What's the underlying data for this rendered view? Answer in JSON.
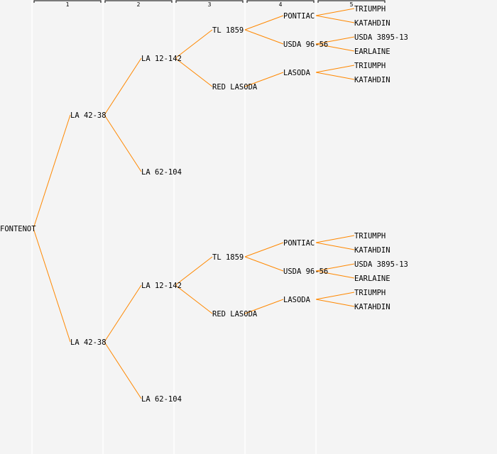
{
  "generation_headers": [
    "1",
    "2",
    "3",
    "4",
    "5"
  ],
  "colors": {
    "line": "#ff8800",
    "separator": "#ffffff",
    "bracket": "#000000",
    "background": "#f4f4f4"
  },
  "pedigree": {
    "name": "FONTENOT",
    "parents": [
      {
        "name": "LA 42-38",
        "parents": [
          {
            "name": "LA 12-142",
            "parents": [
              {
                "name": "TL 1859",
                "parents": [
                  {
                    "name": "PONTIAC",
                    "parents": [
                      {
                        "name": "TRIUMPH"
                      },
                      {
                        "name": "KATAHDIN"
                      }
                    ]
                  },
                  {
                    "name": "USDA 96-56",
                    "parents": [
                      {
                        "name": "USDA 3895-13"
                      },
                      {
                        "name": "EARLAINE"
                      }
                    ]
                  }
                ]
              },
              {
                "name": "RED LASODA",
                "parents": [
                  {
                    "name": "LASODA",
                    "parents": [
                      {
                        "name": "TRIUMPH"
                      },
                      {
                        "name": "KATAHDIN"
                      }
                    ]
                  },
                  null
                ]
              }
            ]
          },
          {
            "name": "LA 62-104"
          }
        ]
      },
      {
        "name": "LA 42-38",
        "parents": [
          {
            "name": "LA 12-142",
            "parents": [
              {
                "name": "TL 1859",
                "parents": [
                  {
                    "name": "PONTIAC",
                    "parents": [
                      {
                        "name": "TRIUMPH"
                      },
                      {
                        "name": "KATAHDIN"
                      }
                    ]
                  },
                  {
                    "name": "USDA 96-56",
                    "parents": [
                      {
                        "name": "USDA 3895-13"
                      },
                      {
                        "name": "EARLAINE"
                      }
                    ]
                  }
                ]
              },
              {
                "name": "RED LASODA",
                "parents": [
                  {
                    "name": "LASODA",
                    "parents": [
                      {
                        "name": "TRIUMPH"
                      },
                      {
                        "name": "KATAHDIN"
                      }
                    ]
                  },
                  null
                ]
              }
            ]
          },
          {
            "name": "LA 62-104"
          }
        ]
      }
    ]
  }
}
